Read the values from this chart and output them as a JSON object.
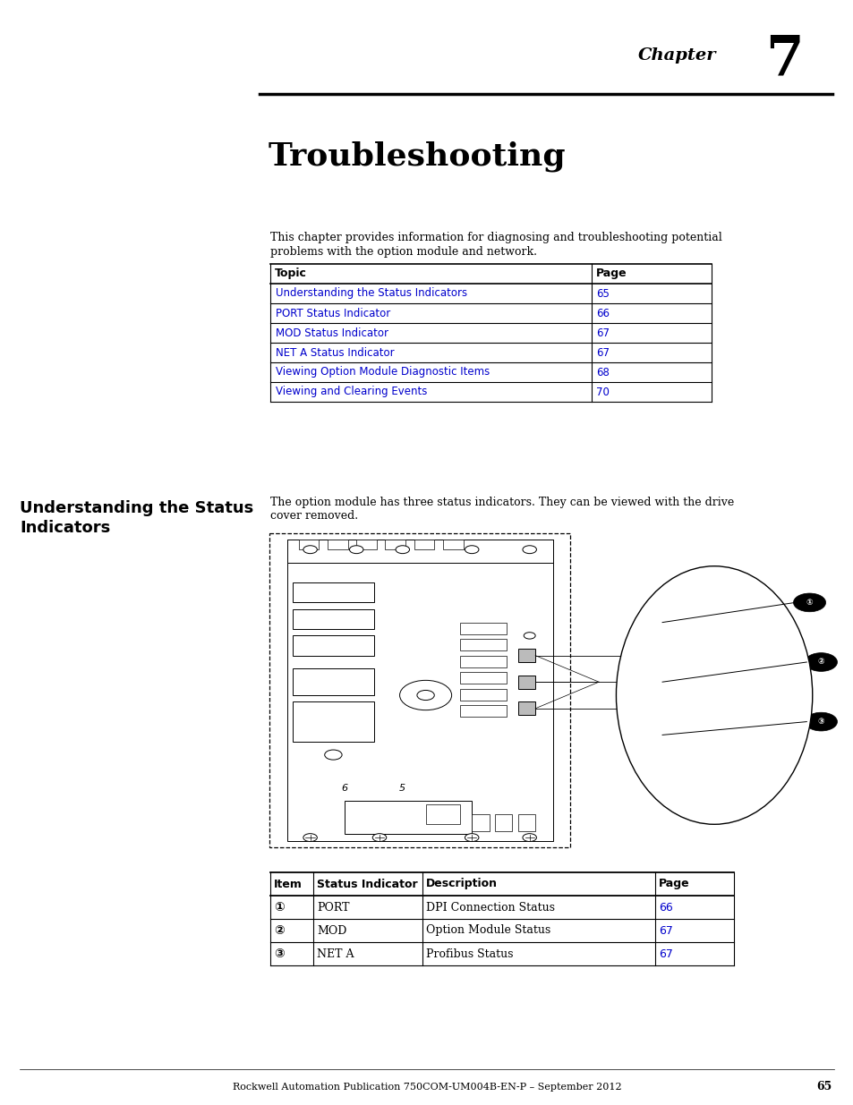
{
  "page_bg": "#ffffff",
  "chapter_label": "Chapter",
  "chapter_number": "7",
  "title": "Troubleshooting",
  "intro_line1": "This chapter provides information for diagnosing and troubleshooting potential",
  "intro_line2": "problems with the option module and network.",
  "toc_headers": [
    "Topic",
    "Page"
  ],
  "toc_rows": [
    [
      "Understanding the Status Indicators",
      "65"
    ],
    [
      "PORT Status Indicator",
      "66"
    ],
    [
      "MOD Status Indicator",
      "67"
    ],
    [
      "NET A Status Indicator",
      "67"
    ],
    [
      "Viewing Option Module Diagnostic Items",
      "68"
    ],
    [
      "Viewing and Clearing Events",
      "70"
    ]
  ],
  "section_title_line1": "Understanding the Status",
  "section_title_line2": "Indicators",
  "section_intro_line1": "The option module has three status indicators. They can be viewed with the drive",
  "section_intro_line2": "cover removed.",
  "status_table_headers": [
    "Item",
    "Status Indicator",
    "Description",
    "Page"
  ],
  "status_table_rows": [
    [
      "①",
      "PORT",
      "DPI Connection Status",
      "66"
    ],
    [
      "②",
      "MOD",
      "Option Module Status",
      "67"
    ],
    [
      "③",
      "NET A",
      "Profibus Status",
      "67"
    ]
  ],
  "footer_text": "Rockwell Automation Publication 750COM-UM004B-EN-P – September 2012",
  "page_number": "65",
  "link_color": "#0000cc",
  "black": "#000000"
}
